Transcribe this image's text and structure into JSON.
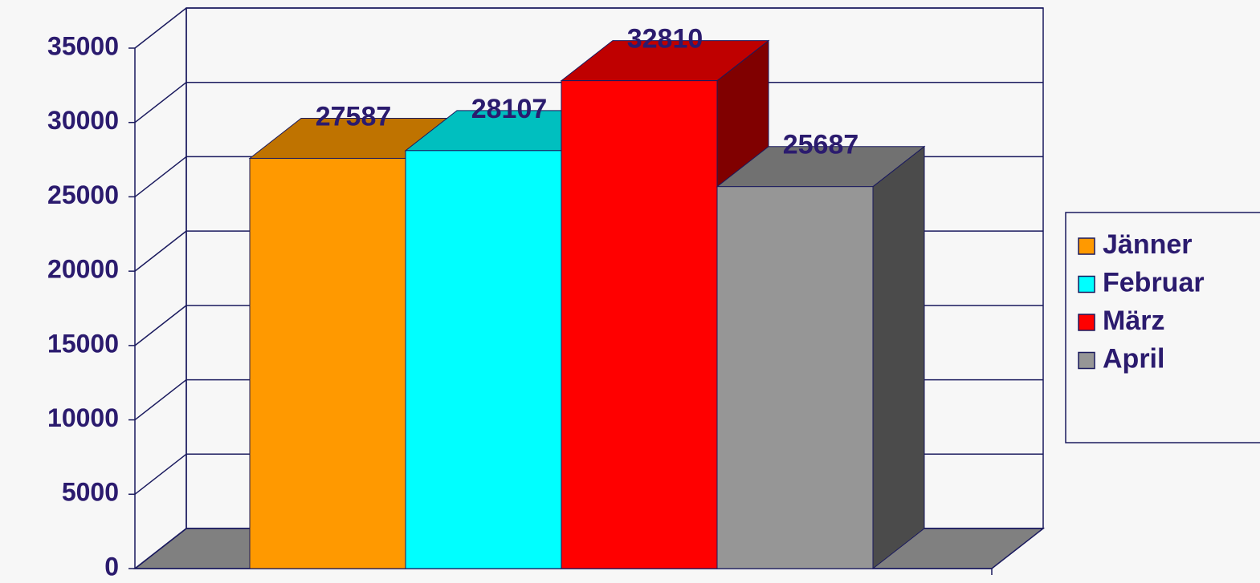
{
  "chart_data": {
    "type": "bar",
    "categories": [
      null
    ],
    "series": [
      {
        "name": "Jänner",
        "color": "#ff9900",
        "values": [
          27587
        ]
      },
      {
        "name": "Februar",
        "color": "#00ffff",
        "values": [
          28107
        ]
      },
      {
        "name": "März",
        "color": "#ff0000",
        "values": [
          32810
        ]
      },
      {
        "name": "April",
        "color": "#969696",
        "values": [
          25687
        ]
      }
    ],
    "ylim": [
      0,
      35000
    ],
    "yticks": [
      0,
      5000,
      10000,
      15000,
      20000,
      25000,
      30000,
      35000
    ],
    "grid": true,
    "legend": "right"
  }
}
